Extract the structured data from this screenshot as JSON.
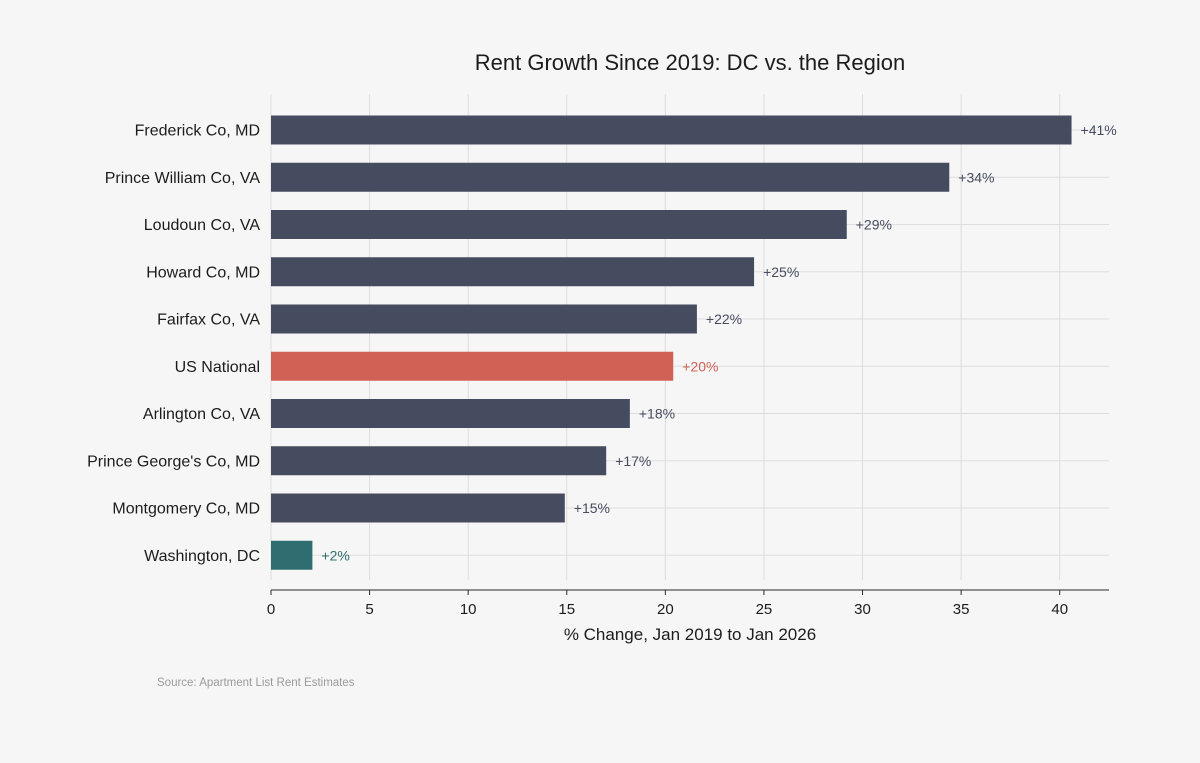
{
  "chart_data": {
    "type": "bar",
    "orientation": "horizontal",
    "title": "Rent Growth Since 2019: DC vs. the Region",
    "xlabel": "% Change, Jan 2019 to Jan 2026",
    "ylabel": "",
    "xlim": [
      0,
      42.5
    ],
    "xticks": [
      0,
      5,
      10,
      15,
      20,
      25,
      30,
      35,
      40
    ],
    "grid": true,
    "categories": [
      "Frederick Co, MD",
      "Prince William Co, VA",
      "Loudoun Co, VA",
      "Howard Co, MD",
      "Fairfax Co, VA",
      "US National",
      "Arlington Co, VA",
      "Prince George's Co, MD",
      "Montgomery Co, MD",
      "Washington, DC"
    ],
    "values": [
      40.6,
      34.4,
      29.2,
      24.5,
      21.6,
      20.4,
      18.2,
      17.0,
      14.9,
      2.1
    ],
    "data_labels": [
      "+41%",
      "+34%",
      "+29%",
      "+25%",
      "+22%",
      "+20%",
      "+18%",
      "+17%",
      "+15%",
      "+2%"
    ],
    "bar_colors": [
      "#464c5f",
      "#464c5f",
      "#464c5f",
      "#464c5f",
      "#464c5f",
      "#d06154",
      "#464c5f",
      "#464c5f",
      "#464c5f",
      "#2f6e70"
    ],
    "label_colors": [
      "#464c5f",
      "#464c5f",
      "#464c5f",
      "#464c5f",
      "#464c5f",
      "#d06154",
      "#464c5f",
      "#464c5f",
      "#464c5f",
      "#2f6e70"
    ],
    "source": "Source: Apartment List Rent Estimates"
  }
}
